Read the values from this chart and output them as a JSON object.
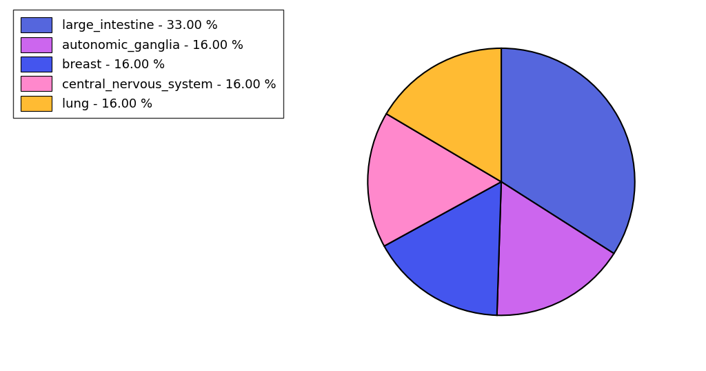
{
  "labels": [
    "large_intestine",
    "autonomic_ganglia",
    "breast",
    "central_nervous_system",
    "lung"
  ],
  "sizes": [
    33.0,
    16.0,
    16.0,
    16.0,
    16.0
  ],
  "colors": [
    "#5566dd",
    "#cc66ee",
    "#4455ee",
    "#ff88cc",
    "#ffbb33"
  ],
  "legend_labels": [
    "large_intestine - 33.00 %",
    "autonomic_ganglia - 16.00 %",
    "breast - 16.00 %",
    "central_nervous_system - 16.00 %",
    "lung - 16.00 %"
  ],
  "startangle": 90,
  "figsize": [
    10.24,
    5.38
  ],
  "dpi": 100
}
